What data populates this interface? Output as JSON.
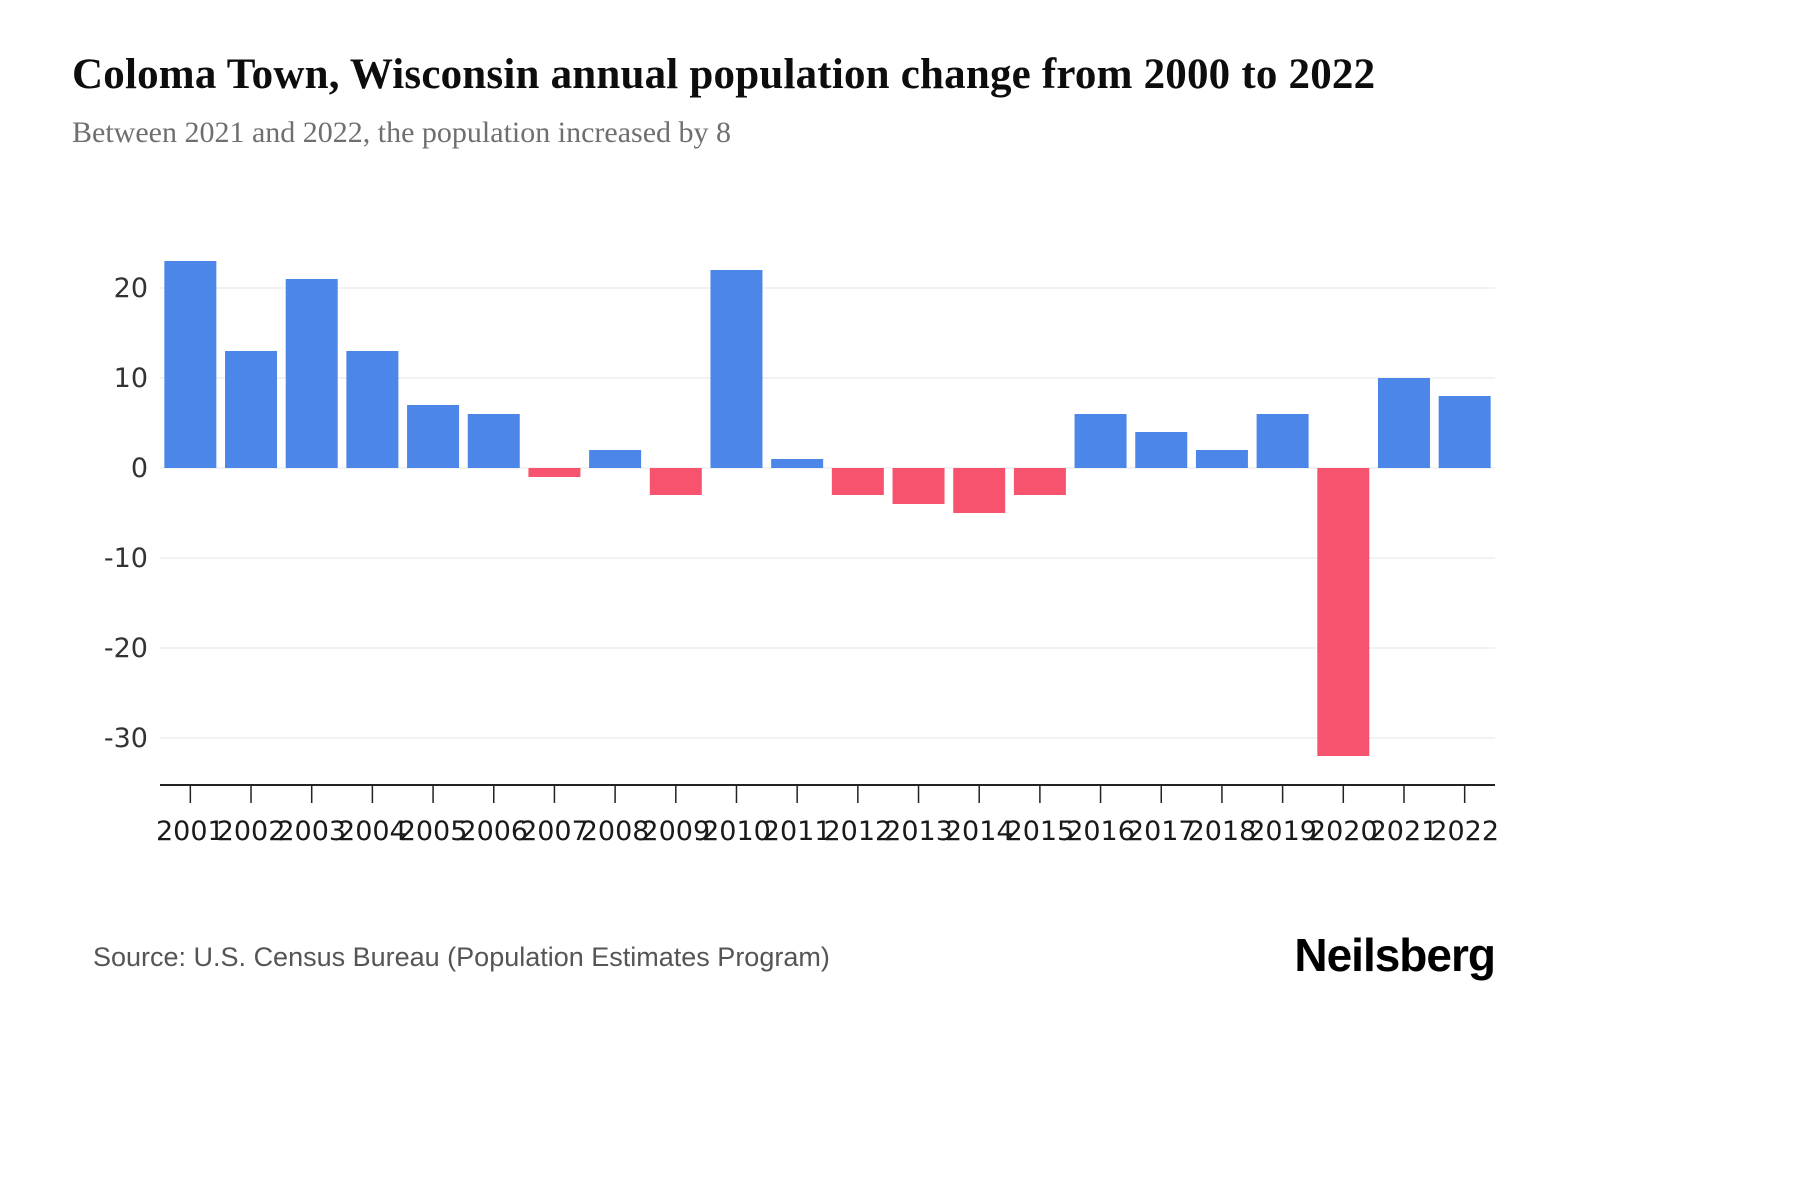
{
  "header": {
    "title": "Coloma Town, Wisconsin annual population change from 2000 to 2022",
    "subtitle": "Between 2021 and 2022, the population increased by 8"
  },
  "footer": {
    "source": "Source: U.S. Census Bureau (Population Estimates Program)",
    "brand": "Neilsberg"
  },
  "chart_data": {
    "type": "bar",
    "title": "Coloma Town, Wisconsin annual population change from 2000 to 2022",
    "xlabel": "",
    "ylabel": "",
    "categories": [
      "2001",
      "2002",
      "2003",
      "2004",
      "2005",
      "2006",
      "2007",
      "2008",
      "2009",
      "2010",
      "2011",
      "2012",
      "2013",
      "2014",
      "2015",
      "2016",
      "2017",
      "2018",
      "2019",
      "2020",
      "2021",
      "2022"
    ],
    "values": [
      23,
      13,
      21,
      13,
      7,
      6,
      -1,
      2,
      -3,
      22,
      1,
      -3,
      -4,
      -5,
      -3,
      6,
      4,
      2,
      6,
      -32,
      10,
      8
    ],
    "ylim": [
      -35,
      25
    ],
    "yticks": [
      20,
      10,
      0,
      -10,
      -20,
      -30
    ],
    "positive_color": "#4c86e8",
    "negative_color": "#f8536e",
    "grid": true,
    "legend": false
  }
}
